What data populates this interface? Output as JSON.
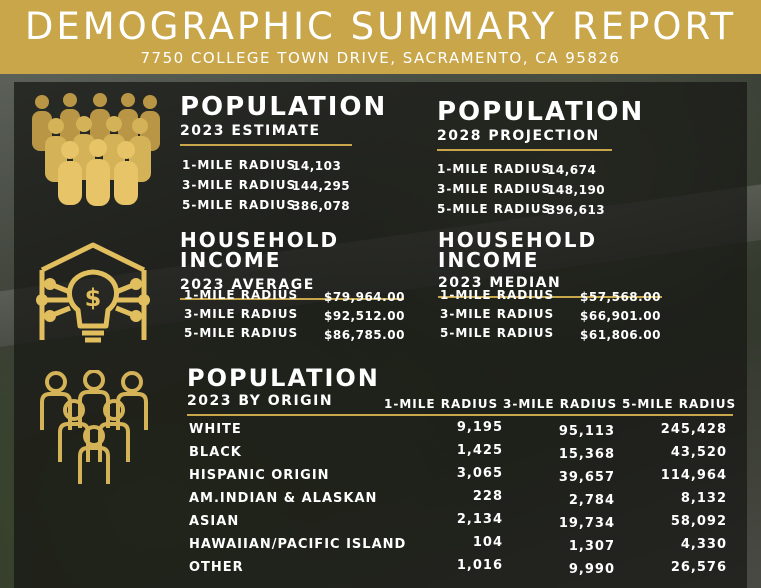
{
  "header": {
    "title": "DEMOGRAPHIC SUMMARY REPORT",
    "address": "7750 COLLEGE TOWN DRIVE, SACRAMENTO, CA 95826"
  },
  "colors": {
    "gold": "#c9a64a",
    "overlay": "#161614"
  },
  "population_2023": {
    "title": "POPULATION",
    "subtitle": "2023 ESTIMATE",
    "rows": [
      {
        "label": "1-MILE RADIUS",
        "value": "14,103"
      },
      {
        "label": "3-MILE RADIUS",
        "value": "144,295"
      },
      {
        "label": "5-MILE RADIUS",
        "value": "386,078"
      }
    ]
  },
  "population_2028": {
    "title": "POPULATION",
    "subtitle": "2028 PROJECTION",
    "rows": [
      {
        "label": "1-MILE RADIUS",
        "value": "14,674"
      },
      {
        "label": "3-MILE RADIUS",
        "value": "148,190"
      },
      {
        "label": "5-MILE RADIUS",
        "value": "396,613"
      }
    ]
  },
  "income_average": {
    "title": "HOUSEHOLD INCOME",
    "subtitle": "2023 AVERAGE",
    "rows": [
      {
        "label": "1-MILE RADIUS",
        "value": "$79,964.00"
      },
      {
        "label": "3-MILE RADIUS",
        "value": "$92,512.00"
      },
      {
        "label": "5-MILE RADIUS",
        "value": "$86,785.00"
      }
    ]
  },
  "income_median": {
    "title": "HOUSEHOLD INCOME",
    "subtitle": "2023 MEDIAN",
    "rows": [
      {
        "label": "1-MILE RADIUS",
        "value": "$57,568.00"
      },
      {
        "label": "3-MILE RADIUS",
        "value": "$66,901.00"
      },
      {
        "label": "5-MILE RADIUS",
        "value": "$61,806.00"
      }
    ]
  },
  "origin": {
    "title": "POPULATION",
    "subtitle": "2023 BY ORIGIN",
    "columns": [
      "1-MILE RADIUS",
      "3-MILE RADIUS",
      "5-MILE RADIUS"
    ],
    "rows": [
      {
        "label": "WHITE",
        "v1": "9,195",
        "v3": "95,113",
        "v5": "245,428"
      },
      {
        "label": "BLACK",
        "v1": "1,425",
        "v3": "15,368",
        "v5": "43,520"
      },
      {
        "label": "HISPANIC ORIGIN",
        "v1": "3,065",
        "v3": "39,657",
        "v5": "114,964"
      },
      {
        "label": "AM.INDIAN & ALASKAN",
        "v1": "228",
        "v3": "2,784",
        "v5": "8,132"
      },
      {
        "label": "ASIAN",
        "v1": "2,134",
        "v3": "19,734",
        "v5": "58,092"
      },
      {
        "label": "HAWAIIAN/PACIFIC ISLAND",
        "v1": "104",
        "v3": "1,307",
        "v5": "4,330"
      },
      {
        "label": "OTHER",
        "v1": "1,016",
        "v3": "9,990",
        "v5": "26,576"
      }
    ]
  },
  "icons": [
    "crowd-icon",
    "house-lightbulb-icon",
    "group-people-icon"
  ]
}
